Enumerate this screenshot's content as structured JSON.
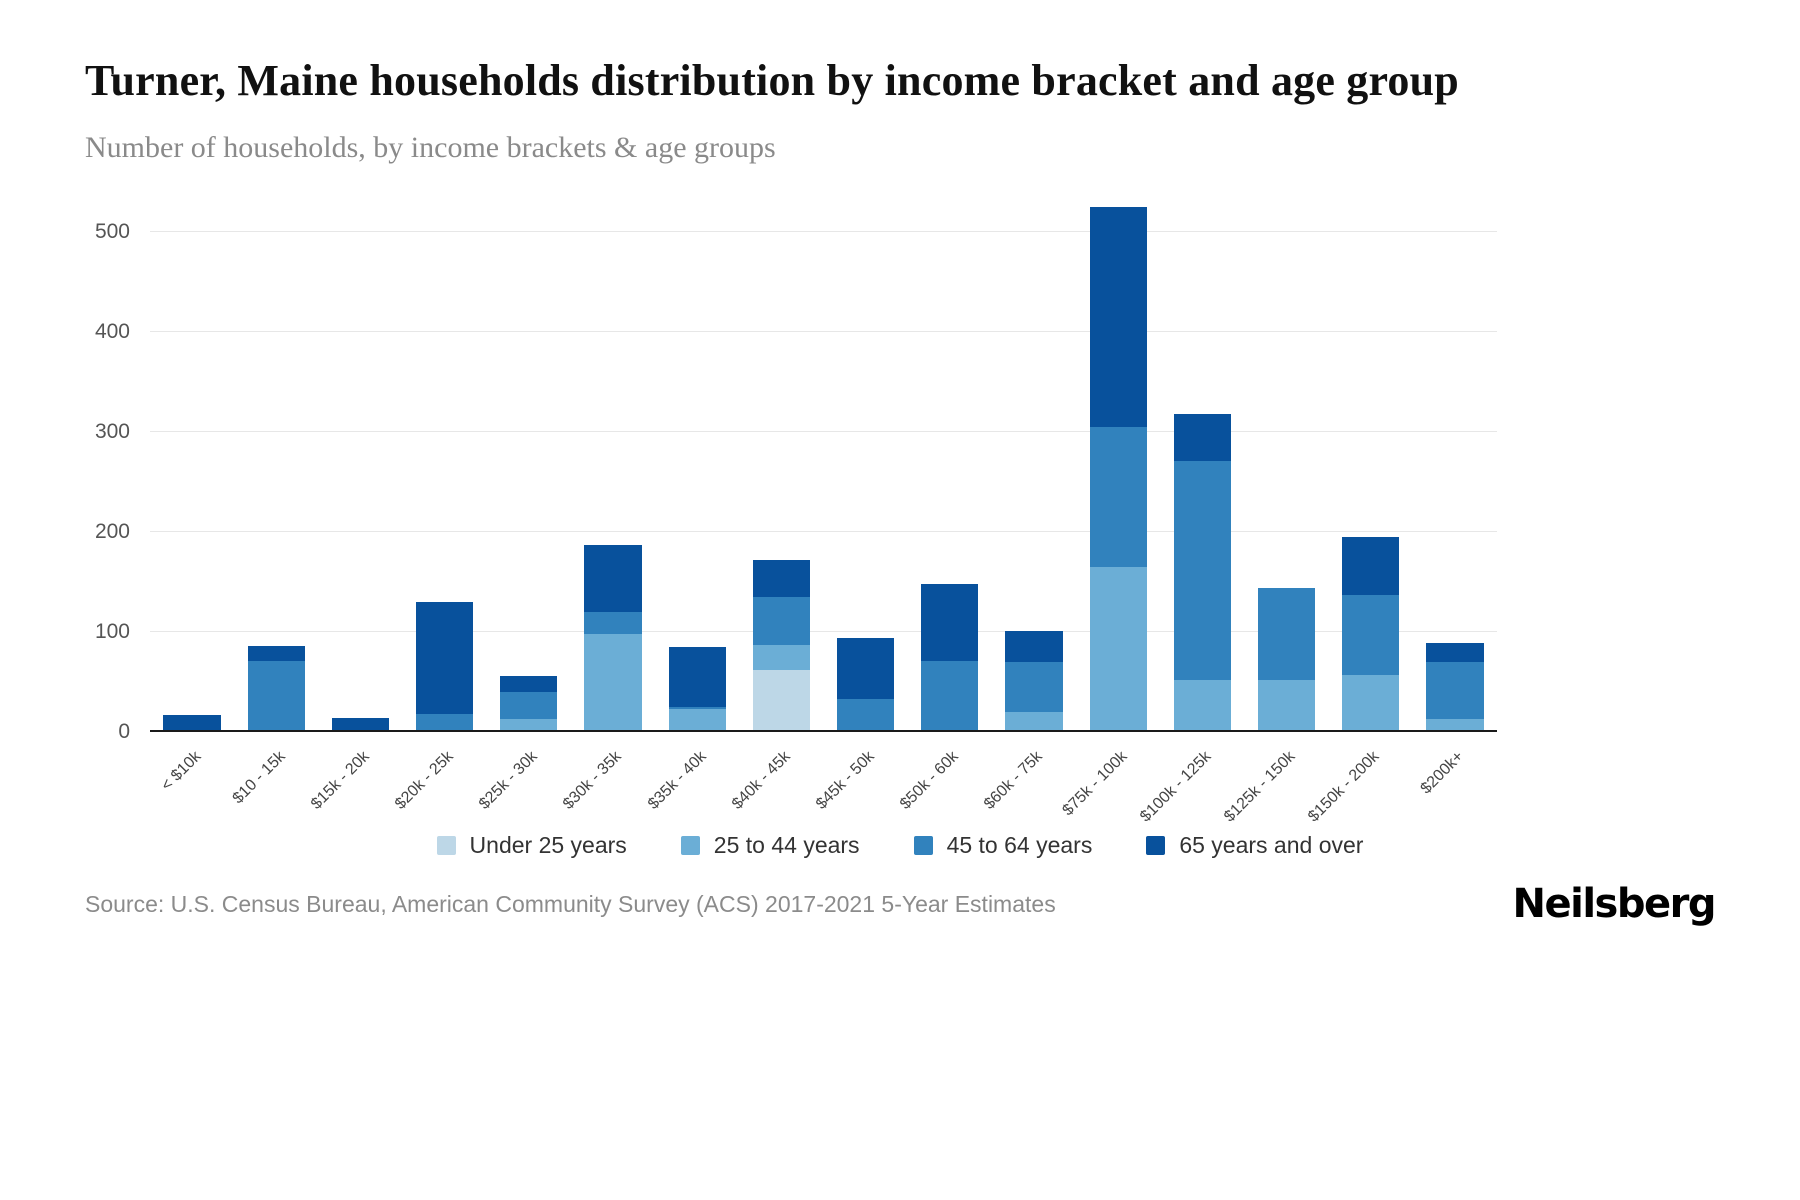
{
  "header": {
    "title": "Turner, Maine households distribution by income bracket and age group",
    "subtitle": "Number of households, by income brackets & age groups"
  },
  "footer": {
    "source": "Source: U.S. Census Bureau, American Community Survey (ACS) 2017-2021 5-Year Estimates",
    "brand": "Neilsberg"
  },
  "chart_data": {
    "type": "bar",
    "stacked": true,
    "title": "Turner, Maine households distribution by income bracket and age group",
    "subtitle": "Number of households, by income brackets & age groups",
    "xlabel": "",
    "ylabel": "Number of households",
    "grid": true,
    "legend_position": "bottom",
    "yticks": [
      0,
      100,
      200,
      300,
      400,
      500
    ],
    "ymax": 525,
    "categories": [
      "< $10k",
      "$10 - 15k",
      "$15k - 20k",
      "$20k - 25k",
      "$25k - 30k",
      "$30k - 35k",
      "$35k - 40k",
      "$40k - 45k",
      "$45k - 50k",
      "$50k - 60k",
      "$60k - 75k",
      "$75k - 100k",
      "$100k - 125k",
      "$125k - 150k",
      "$150k - 200k",
      "$200k+"
    ],
    "series": [
      {
        "name": "Under 25 years",
        "color": "#bdd7e7",
        "values": [
          0,
          0,
          0,
          0,
          0,
          0,
          0,
          62,
          0,
          0,
          0,
          0,
          0,
          0,
          0,
          0
        ]
      },
      {
        "name": "25 to 44 years",
        "color": "#6baed6",
        "values": [
          0,
          0,
          0,
          0,
          13,
          98,
          23,
          25,
          0,
          0,
          20,
          165,
          52,
          52,
          57,
          13
        ]
      },
      {
        "name": "45 to 64 years",
        "color": "#3182bd",
        "values": [
          0,
          71,
          0,
          18,
          27,
          22,
          2,
          48,
          33,
          71,
          50,
          140,
          219,
          92,
          80,
          57
        ]
      },
      {
        "name": "65 years and over",
        "color": "#08519c",
        "values": [
          17,
          15,
          14,
          112,
          16,
          67,
          60,
          37,
          61,
          77,
          31,
          220,
          47,
          0,
          58,
          19
        ]
      }
    ]
  }
}
